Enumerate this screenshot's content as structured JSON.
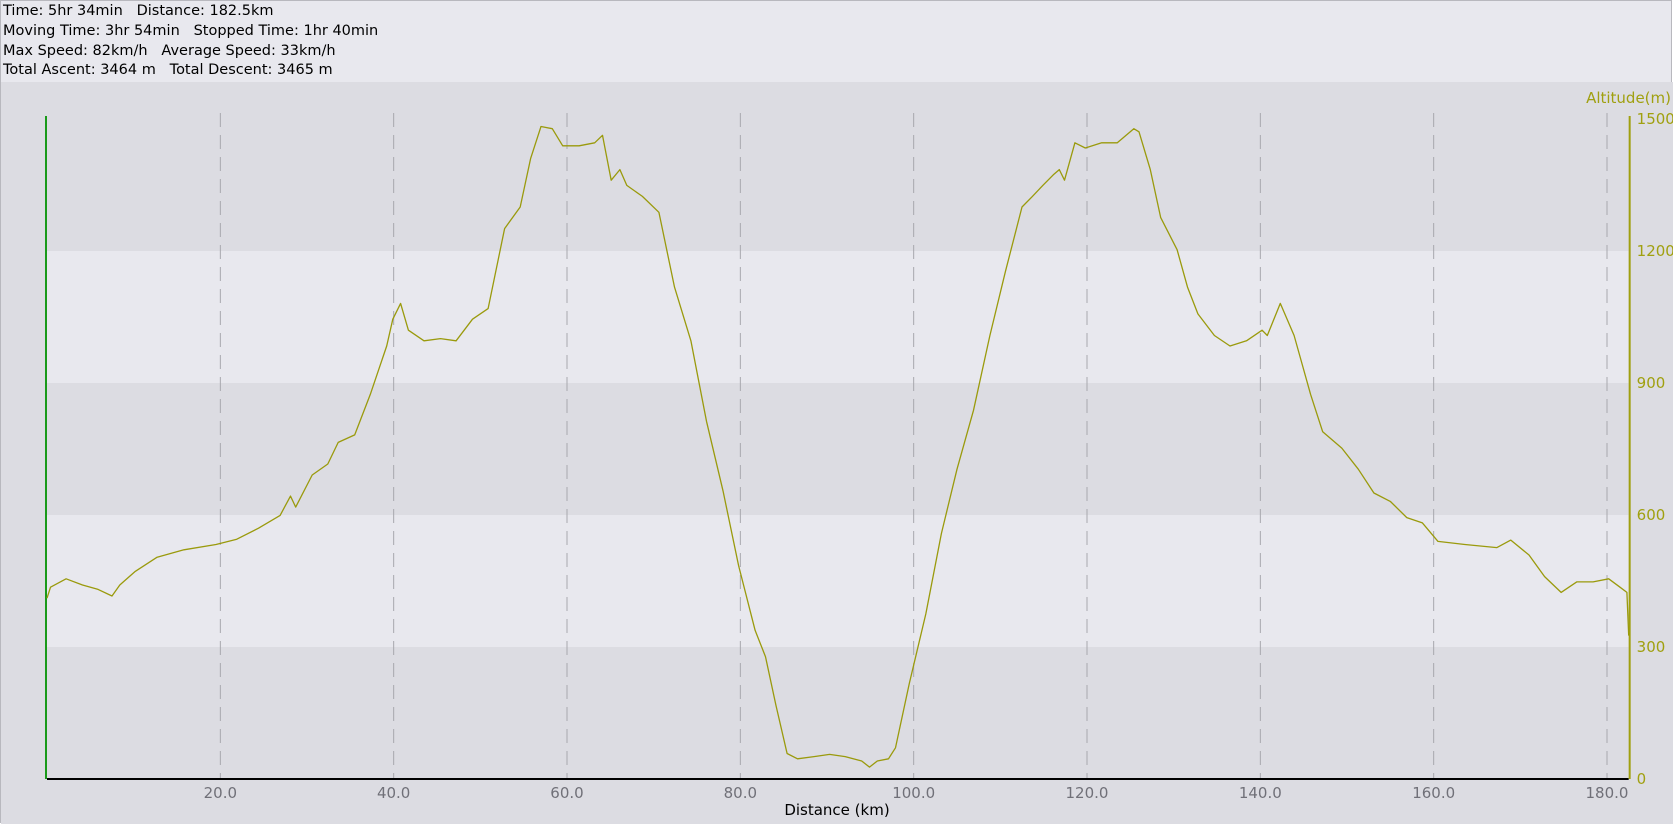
{
  "stats": {
    "line1": "Time: 5hr 34min   Distance: 182.5km",
    "line2": "Moving Time: 3hr 54min   Stopped Time: 1hr 40min",
    "line3": "Max Speed: 82km/h   Average Speed: 33km/h",
    "line4": "Total Ascent: 3464 m   Total Descent: 3465 m"
  },
  "colors": {
    "line": "#9a9a0c",
    "axis_right": "#a0a010",
    "axis_left": "#1a9a1a",
    "band_dark": "#dcdce2",
    "band_light": "#e8e8ee",
    "tick_text": "#707078"
  },
  "chart_data": {
    "type": "line",
    "title": "",
    "xlabel": "Distance (km)",
    "ylabel": "Altitude(m)",
    "xlim": [
      0,
      182.5
    ],
    "ylim": [
      0,
      1500
    ],
    "x_ticks": [
      "20.0",
      "40.0",
      "60.0",
      "80.0",
      "100.0",
      "120.0",
      "140.0",
      "160.0",
      "180.0"
    ],
    "y_ticks": [
      "0",
      "300",
      "600",
      "900",
      "1200",
      "1500"
    ],
    "grid": "vertical dashed at x ticks; alternating horizontal bands",
    "y_axis_side": "right",
    "x": [
      0,
      0.4,
      2.2,
      4.1,
      5.9,
      7.5,
      8.4,
      10.2,
      12.7,
      15.8,
      19.5,
      21.9,
      24.4,
      26.9,
      28.1,
      28.7,
      30.6,
      32.4,
      33.6,
      35.5,
      37.3,
      39.2,
      39.9,
      40.8,
      41.7,
      43.5,
      45.4,
      47.2,
      49.1,
      50.9,
      52.8,
      54.6,
      55.8,
      57.0,
      58.3,
      59.5,
      61.4,
      63.2,
      64.1,
      65.1,
      66.1,
      66.9,
      68.7,
      70.6,
      72.4,
      74.3,
      76.1,
      78.0,
      79.8,
      81.7,
      82.9,
      84.1,
      85.4,
      86.6,
      88.5,
      90.3,
      92.1,
      94.0,
      94.9,
      95.8,
      97.1,
      97.9,
      99.5,
      101.4,
      103.2,
      105.0,
      106.9,
      108.8,
      110.6,
      112.5,
      113.7,
      114.9,
      116.1,
      116.8,
      117.4,
      118.6,
      119.8,
      121.7,
      123.5,
      125.4,
      126.0,
      127.3,
      128.5,
      130.4,
      131.6,
      132.8,
      134.7,
      136.5,
      138.4,
      140.2,
      140.8,
      142.3,
      143.9,
      145.8,
      147.2,
      149.4,
      151.3,
      153.1,
      155.0,
      156.9,
      158.7,
      160.5,
      163.6,
      167.3,
      168.9,
      171.0,
      172.8,
      174.7,
      176.5,
      178.4,
      180.2,
      181.5,
      182.3,
      182.5
    ],
    "y": [
      411,
      436,
      455,
      441,
      431,
      416,
      441,
      472,
      504,
      521,
      533,
      545,
      570,
      599,
      643,
      618,
      691,
      716,
      765,
      782,
      874,
      984,
      1045,
      1081,
      1020,
      996,
      1001,
      996,
      1045,
      1069,
      1251,
      1300,
      1410,
      1483,
      1478,
      1439,
      1439,
      1446,
      1463,
      1361,
      1385,
      1349,
      1324,
      1288,
      1118,
      996,
      813,
      655,
      485,
      338,
      278,
      168,
      58,
      46,
      51,
      56,
      51,
      41,
      27,
      41,
      46,
      71,
      217,
      375,
      558,
      704,
      838,
      1008,
      1154,
      1300,
      1324,
      1349,
      1373,
      1385,
      1361,
      1446,
      1434,
      1446,
      1446,
      1478,
      1471,
      1385,
      1276,
      1203,
      1118,
      1057,
      1008,
      984,
      996,
      1020,
      1008,
      1081,
      1008,
      874,
      789,
      752,
      704,
      650,
      631,
      594,
      582,
      540,
      533,
      526,
      543,
      509,
      460,
      424,
      448,
      448,
      455,
      436,
      424,
      326
    ]
  }
}
